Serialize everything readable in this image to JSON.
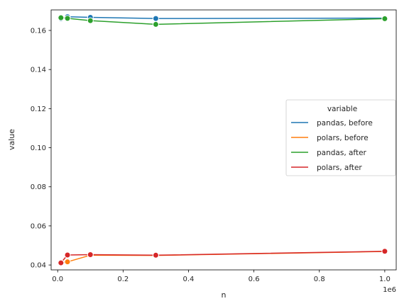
{
  "chart_data": {
    "type": "line",
    "xlabel": "n",
    "ylabel": "value",
    "x_offset_label": "1e6",
    "x_scale": 1000000,
    "xlim": [
      -20000,
      1035000
    ],
    "ylim": [
      0.0375,
      0.1705
    ],
    "x_ticks": [
      0,
      200000,
      400000,
      600000,
      800000,
      1000000
    ],
    "x_tick_labels": [
      "0.0",
      "0.2",
      "0.4",
      "0.6",
      "0.8",
      "1.0"
    ],
    "y_ticks": [
      0.04,
      0.06,
      0.08,
      0.1,
      0.12,
      0.14,
      0.16
    ],
    "y_tick_labels": [
      "0.04",
      "0.06",
      "0.08",
      "0.10",
      "0.12",
      "0.14",
      "0.16"
    ],
    "grid": false,
    "legend": {
      "title": "variable",
      "placement": "center-right"
    },
    "series": [
      {
        "name": "pandas, before",
        "color": "#1f77b4",
        "x": [
          10000,
          30000,
          100000,
          300000,
          1000000
        ],
        "y": [
          0.166,
          0.167,
          0.1667,
          0.1661,
          0.1663
        ]
      },
      {
        "name": "polars, before",
        "color": "#ff7f0e",
        "x": [
          10000,
          30000,
          100000,
          300000,
          1000000
        ],
        "y": [
          0.0412,
          0.0416,
          0.045,
          0.0449,
          0.0469
        ]
      },
      {
        "name": "pandas, after",
        "color": "#2ca02c",
        "x": [
          10000,
          30000,
          100000,
          300000,
          1000000
        ],
        "y": [
          0.1665,
          0.1662,
          0.165,
          0.1631,
          0.166
        ]
      },
      {
        "name": "polars, after",
        "color": "#d62728",
        "x": [
          10000,
          30000,
          100000,
          300000,
          1000000
        ],
        "y": [
          0.0411,
          0.0451,
          0.0453,
          0.045,
          0.047
        ]
      }
    ]
  }
}
